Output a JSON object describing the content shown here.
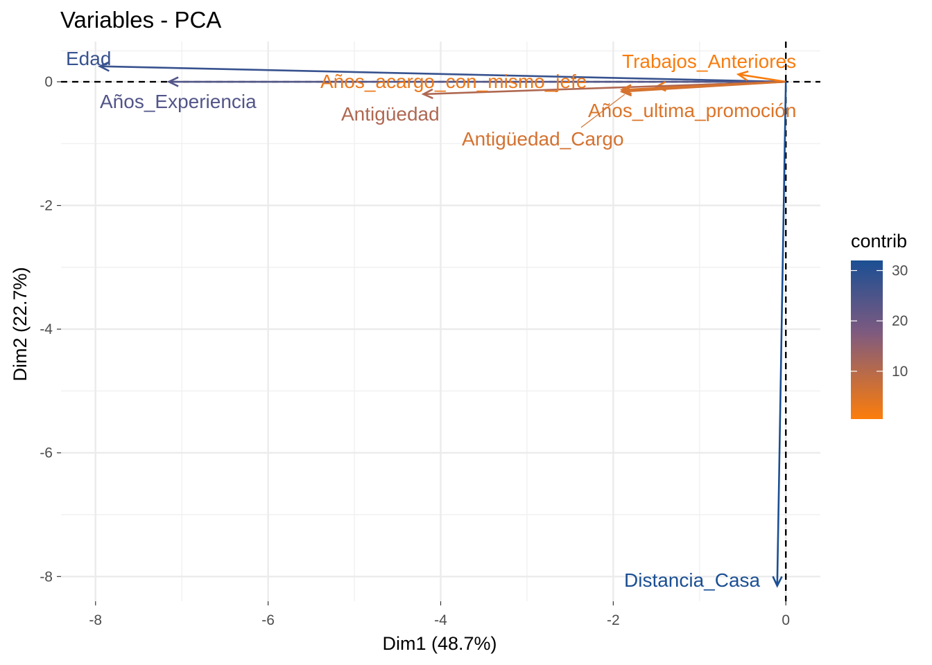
{
  "chart_data": {
    "type": "scatter",
    "title": "Variables - PCA",
    "xlabel": "Dim1 (48.7%)",
    "ylabel": "Dim2 (22.7%)",
    "xlim": [
      -8.4,
      0.4
    ],
    "ylim": [
      -8.4,
      0.65
    ],
    "x_ticks": [
      -8,
      -6,
      -4,
      -2,
      0
    ],
    "y_ticks": [
      -8,
      -6,
      -4,
      -2,
      0
    ],
    "x_tick_labels": [
      "-8",
      "-6",
      "-4",
      "-2",
      "0"
    ],
    "y_tick_labels": [
      "-8",
      "-6",
      "-4",
      "-2",
      "0"
    ],
    "grid": true,
    "legend_position": "right",
    "legend": {
      "title": "contrib",
      "min": 0.5,
      "max": 32,
      "ticks": [
        10,
        20,
        30
      ],
      "tick_labels": [
        "10",
        "20",
        "30"
      ],
      "color_low": "#FC7D0B",
      "color_mid": "#7D5A80",
      "color_high": "#1B4F93"
    },
    "variables": [
      {
        "label": "Edad",
        "x": -7.95,
        "y": 0.25,
        "contrib": 28
      },
      {
        "label": "Años_Experiencia",
        "x": -7.15,
        "y": 0.0,
        "contrib": 24
      },
      {
        "label": "Años_acargo_con_mismo_jefe",
        "x": -1.5,
        "y": -0.08,
        "contrib": 3
      },
      {
        "label": "Antigüedad",
        "x": -4.2,
        "y": -0.2,
        "contrib": 11
      },
      {
        "label": "Trabajos_Anteriores",
        "x": -0.55,
        "y": 0.12,
        "contrib": 1
      },
      {
        "label": "Años_ultima_promoción",
        "x": -1.9,
        "y": -0.13,
        "contrib": 5
      },
      {
        "label": "Antigüedad_Cargo",
        "x": -1.9,
        "y": -0.16,
        "contrib": 6
      },
      {
        "label": "Distancia_Casa",
        "x": -0.1,
        "y": -8.15,
        "contrib": 32
      }
    ]
  }
}
